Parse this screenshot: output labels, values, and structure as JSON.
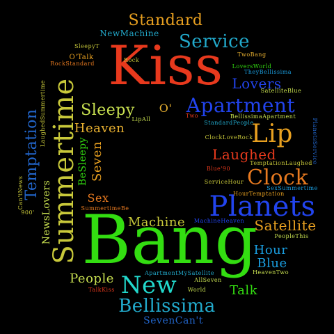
{
  "canvas": {
    "background": "#000000"
  },
  "words": [
    {
      "id": "bang",
      "text": "Bang",
      "color": "#33dd11"
    },
    {
      "id": "kiss",
      "text": "Kiss",
      "color": "#e8391d"
    },
    {
      "id": "summertime",
      "text": "Summertime",
      "color": "#c8c83a"
    },
    {
      "id": "planets",
      "text": "Planets",
      "color": "#2244ee"
    },
    {
      "id": "apartment",
      "text": "Apartment",
      "color": "#2244ee"
    },
    {
      "id": "new",
      "text": "New",
      "color": "#22d8cc"
    },
    {
      "id": "lip",
      "text": "Lip",
      "color": "#e8a020"
    },
    {
      "id": "bellissima",
      "text": "Bellissima",
      "color": "#22aacc"
    },
    {
      "id": "clock",
      "text": "Clock",
      "color": "#e87a20"
    },
    {
      "id": "temptation",
      "text": "Temptation",
      "color": "#2266cc"
    },
    {
      "id": "service",
      "text": "Service",
      "color": "#22aacc"
    },
    {
      "id": "sleepy",
      "text": "Sleepy",
      "color": "#c8e050"
    },
    {
      "id": "standard",
      "text": "Standard",
      "color": "#e8a020"
    },
    {
      "id": "laughed",
      "text": "Laughed",
      "color": "#e83a1d"
    },
    {
      "id": "lovers",
      "text": "Lovers",
      "color": "#2244ee"
    },
    {
      "id": "satellite",
      "text": "Satellite",
      "color": "#e8a020"
    },
    {
      "id": "heaven",
      "text": "Heaven",
      "color": "#e8b030"
    },
    {
      "id": "machine",
      "text": "Machine",
      "color": "#c8c83a"
    },
    {
      "id": "hour",
      "text": "Hour",
      "color": "#1a9ee0"
    },
    {
      "id": "blue",
      "text": "Blue",
      "color": "#1a9ee0"
    },
    {
      "id": "people",
      "text": "People",
      "color": "#c8e050"
    },
    {
      "id": "talk",
      "text": "Talk",
      "color": "#33dd11"
    },
    {
      "id": "seven",
      "text": "Seven",
      "color": "#e8a020"
    },
    {
      "id": "sex",
      "text": "Sex",
      "color": "#e87a20"
    },
    {
      "id": "newslovers",
      "text": "NewsLovers",
      "color": "#c8e050"
    },
    {
      "id": "besleepy",
      "text": "BeSleepy",
      "color": "#33dd11"
    },
    {
      "id": "o",
      "text": "O'",
      "color": "#e8b030"
    },
    {
      "id": "sevencant",
      "text": "SevenCan't",
      "color": "#2266cc"
    },
    {
      "id": "newmachine",
      "text": "NewMachine",
      "color": "#22aacc"
    },
    {
      "id": "otalk",
      "text": "O'Talk",
      "color": "#e8a020"
    },
    {
      "id": "rockstandard",
      "text": "RockStandard",
      "color": "#e87a20"
    },
    {
      "id": "rock",
      "text": "Rock",
      "color": "#c8c83a"
    },
    {
      "id": "sleepyt",
      "text": "SleepyT",
      "color": "#c8c83a"
    },
    {
      "id": "twobang",
      "text": "TwoBang",
      "color": "#e8b030"
    },
    {
      "id": "loversworld",
      "text": "LoversWorld",
      "color": "#33dd11"
    },
    {
      "id": "thebellissima",
      "text": "TheyBellissima",
      "color": "#1a9ee0"
    },
    {
      "id": "satelliteblue",
      "text": "SatelliteBlue",
      "color": "#c8e050"
    },
    {
      "id": "bellissimaapartment",
      "text": "BellissimaApartment",
      "color": "#c8e050"
    },
    {
      "id": "two",
      "text": "Two",
      "color": "#e83a1d"
    },
    {
      "id": "standardpeople",
      "text": "StandardPeople",
      "color": "#22aacc"
    },
    {
      "id": "lipall",
      "text": "LipAll",
      "color": "#c8e050"
    },
    {
      "id": "clocklover",
      "text": "ClockLoveRock",
      "color": "#c8c83a"
    },
    {
      "id": "temptationlaughed",
      "text": "TemptationLaughed",
      "color": "#c8c83a"
    },
    {
      "id": "blue90",
      "text": "Blue'90",
      "color": "#e83a1d"
    },
    {
      "id": "servicehour",
      "text": "ServiceHour",
      "color": "#c8c83a"
    },
    {
      "id": "sexsummertime",
      "text": "SexSummertime",
      "color": "#1a9ee0"
    },
    {
      "id": "hourtemptation",
      "text": "HourTemptation",
      "color": "#e8a020"
    },
    {
      "id": "summertimebe",
      "text": "SummertimeBe",
      "color": "#e87a20"
    },
    {
      "id": "machineheaven",
      "text": "MachineHeaven",
      "color": "#2244ee"
    },
    {
      "id": "peoplethis",
      "text": "PeopleThis",
      "color": "#c8e050"
    },
    {
      "id": "apartmentmysatellite",
      "text": "ApartmentMySatellite",
      "color": "#22aacc"
    },
    {
      "id": "allseven",
      "text": "AllSeven",
      "color": "#c8e050"
    },
    {
      "id": "heaventwo",
      "text": "HeavenTwo",
      "color": "#c8e050"
    },
    {
      "id": "talkkiss",
      "text": "TalkKiss",
      "color": "#e83a1d"
    },
    {
      "id": "world",
      "text": "World",
      "color": "#c8e050"
    },
    {
      "id": "cantnews",
      "text": "Can'tNews",
      "color": "#c8c83a"
    },
    {
      "id": "nine00",
      "text": "900'",
      "color": "#c8c83a"
    },
    {
      "id": "laughedsummertime",
      "text": "LaughedSummertime",
      "color": "#c8c83a"
    },
    {
      "id": "planetsservice",
      "text": "PlanetsService",
      "color": "#2266cc"
    }
  ]
}
